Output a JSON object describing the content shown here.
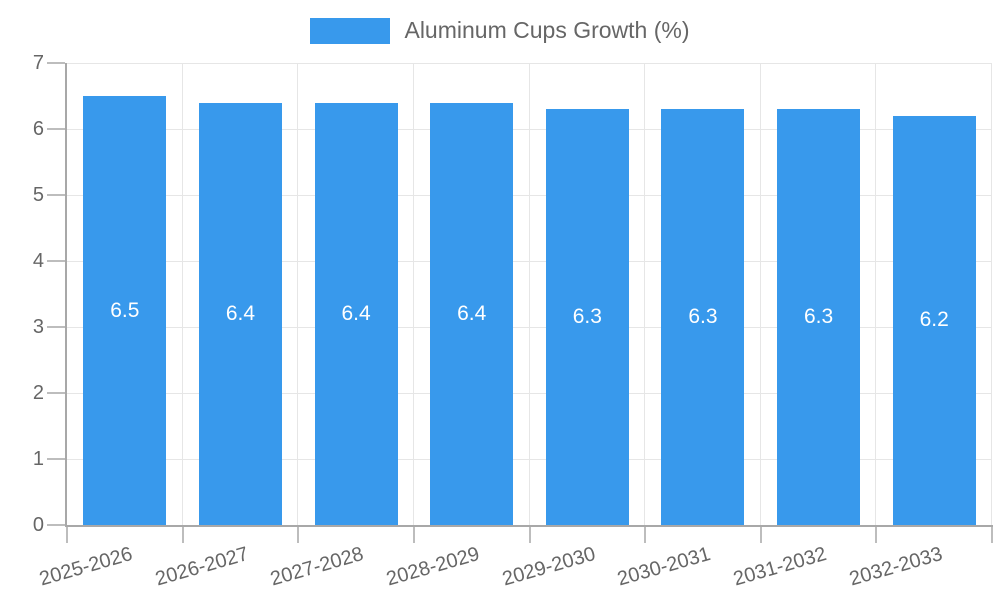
{
  "legend": {
    "label": "Aluminum Cups Growth (%)"
  },
  "chart_data": {
    "type": "bar",
    "title": "Aluminum Cups Growth (%)",
    "categories": [
      "2025-2026",
      "2026-2027",
      "2027-2028",
      "2028-2029",
      "2029-2030",
      "2030-2031",
      "2031-2032",
      "2032-2033"
    ],
    "values": [
      6.5,
      6.4,
      6.4,
      6.4,
      6.3,
      6.3,
      6.3,
      6.2
    ],
    "value_labels": [
      "6.5",
      "6.4",
      "6.4",
      "6.4",
      "6.3",
      "6.3",
      "6.3",
      "6.2"
    ],
    "xlabel": "",
    "ylabel": "",
    "ylim": [
      0,
      7
    ],
    "yticks": [
      0,
      1,
      2,
      3,
      4,
      5,
      6,
      7
    ],
    "grid": true,
    "legend_position": "top-center",
    "legend_entries": [
      "Aluminum Cups Growth (%)"
    ],
    "colors": {
      "bar": "#3899ec",
      "bar_value_text": "#ffffff",
      "axis_text": "#666666",
      "grid_line": "#e6e6e6",
      "axis_line": "#a8a8a8",
      "tick_line": "#bdbdbd",
      "background": "#ffffff"
    }
  }
}
